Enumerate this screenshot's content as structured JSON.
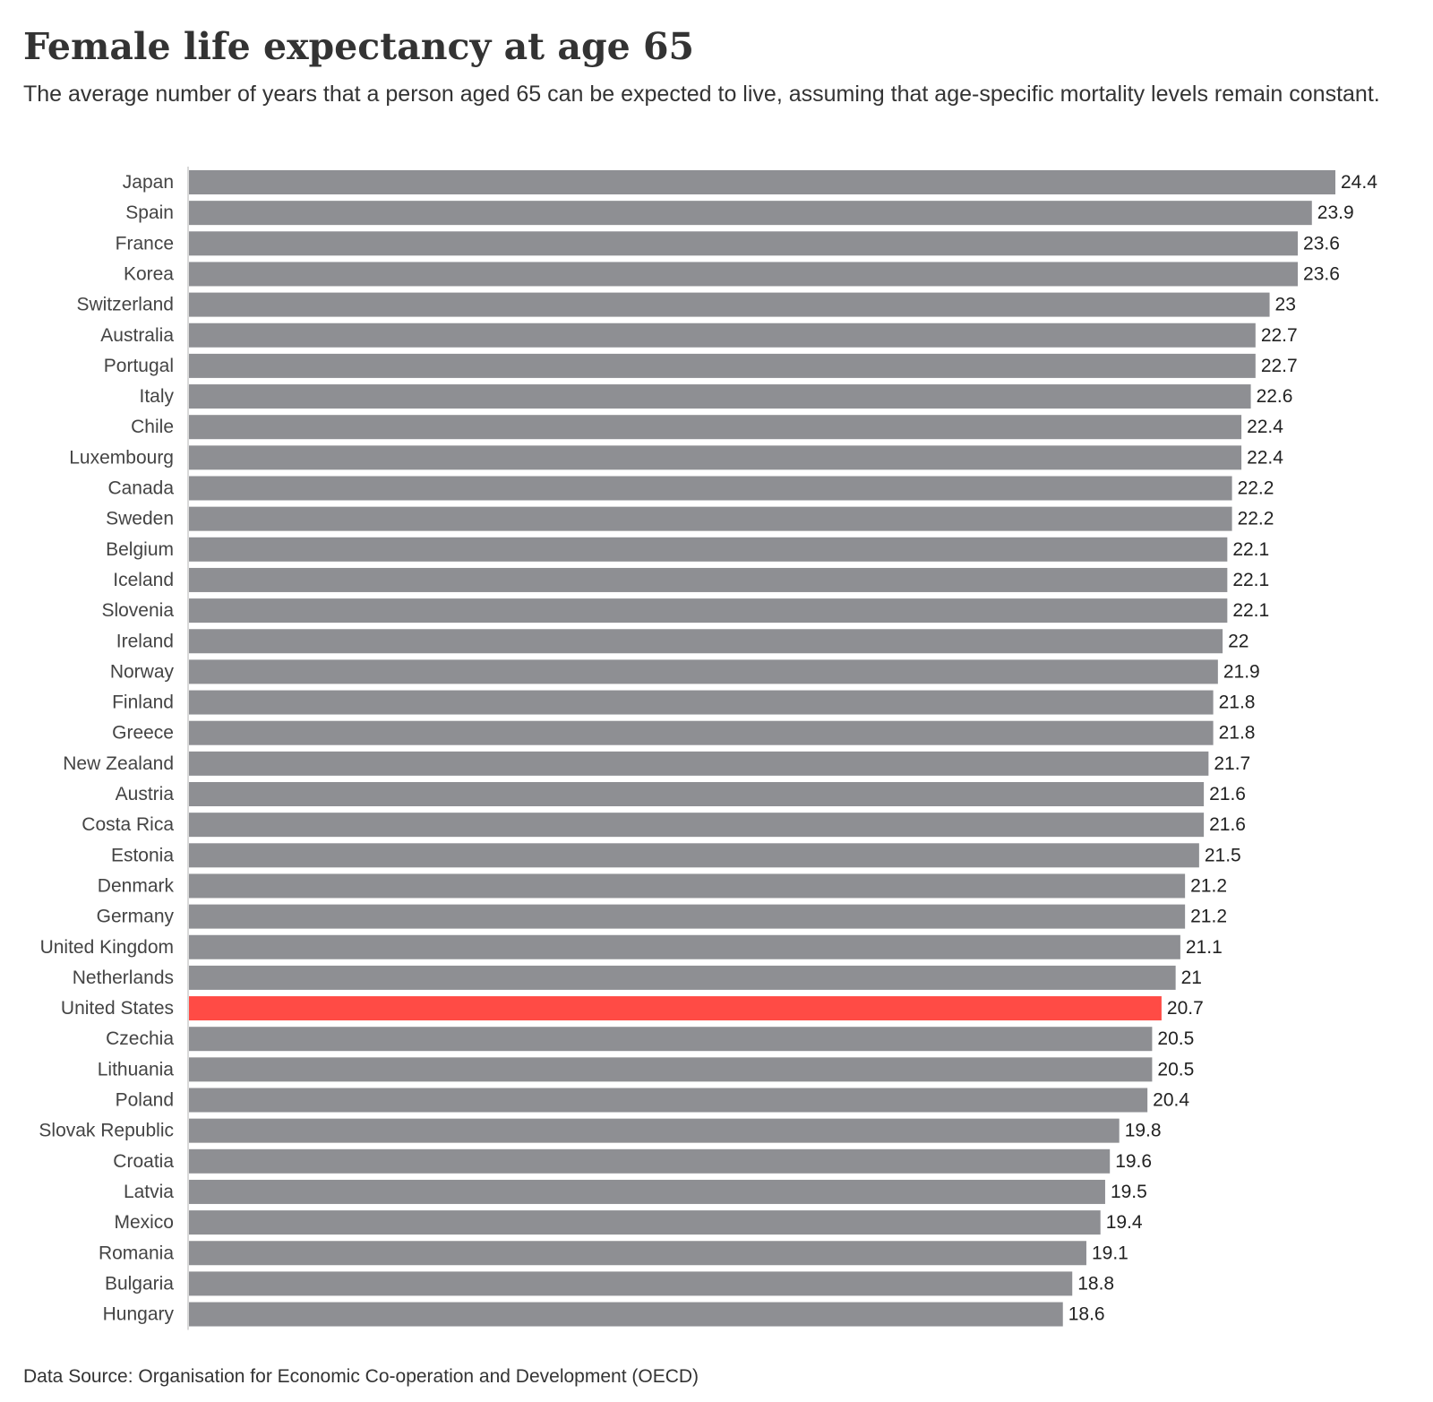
{
  "header": {
    "title": "Female life expectancy at age 65",
    "subtitle": "The average number of years that a person aged 65 can be expected to live, assuming that age-specific mortality levels remain constant."
  },
  "footer": {
    "source": "Data Source: Organisation for Economic Co-operation and Development (OECD)"
  },
  "colors": {
    "bar": "#8e8f93",
    "highlight": "#ff4b45",
    "axis": "#d9d9d9"
  },
  "chart_data": {
    "type": "bar",
    "orientation": "horizontal",
    "title": "Female life expectancy at age 65",
    "subtitle": "The average number of years that a person aged 65 can be expected to live, assuming that age-specific mortality levels remain constant.",
    "xlabel": "",
    "ylabel": "",
    "xlim": [
      0,
      24.4
    ],
    "grid": false,
    "legend": "none",
    "highlight_category": "United States",
    "categories": [
      "Japan",
      "Spain",
      "France",
      "Korea",
      "Switzerland",
      "Australia",
      "Portugal",
      "Italy",
      "Chile",
      "Luxembourg",
      "Canada",
      "Sweden",
      "Belgium",
      "Iceland",
      "Slovenia",
      "Ireland",
      "Norway",
      "Finland",
      "Greece",
      "New Zealand",
      "Austria",
      "Costa Rica",
      "Estonia",
      "Denmark",
      "Germany",
      "United Kingdom",
      "Netherlands",
      "United States",
      "Czechia",
      "Lithuania",
      "Poland",
      "Slovak Republic",
      "Croatia",
      "Latvia",
      "Mexico",
      "Romania",
      "Bulgaria",
      "Hungary"
    ],
    "values": [
      24.4,
      23.9,
      23.6,
      23.6,
      23,
      22.7,
      22.7,
      22.6,
      22.4,
      22.4,
      22.2,
      22.2,
      22.1,
      22.1,
      22.1,
      22,
      21.9,
      21.8,
      21.8,
      21.7,
      21.6,
      21.6,
      21.5,
      21.2,
      21.2,
      21.1,
      21,
      20.7,
      20.5,
      20.5,
      20.4,
      19.8,
      19.6,
      19.5,
      19.4,
      19.1,
      18.8,
      18.6
    ]
  }
}
